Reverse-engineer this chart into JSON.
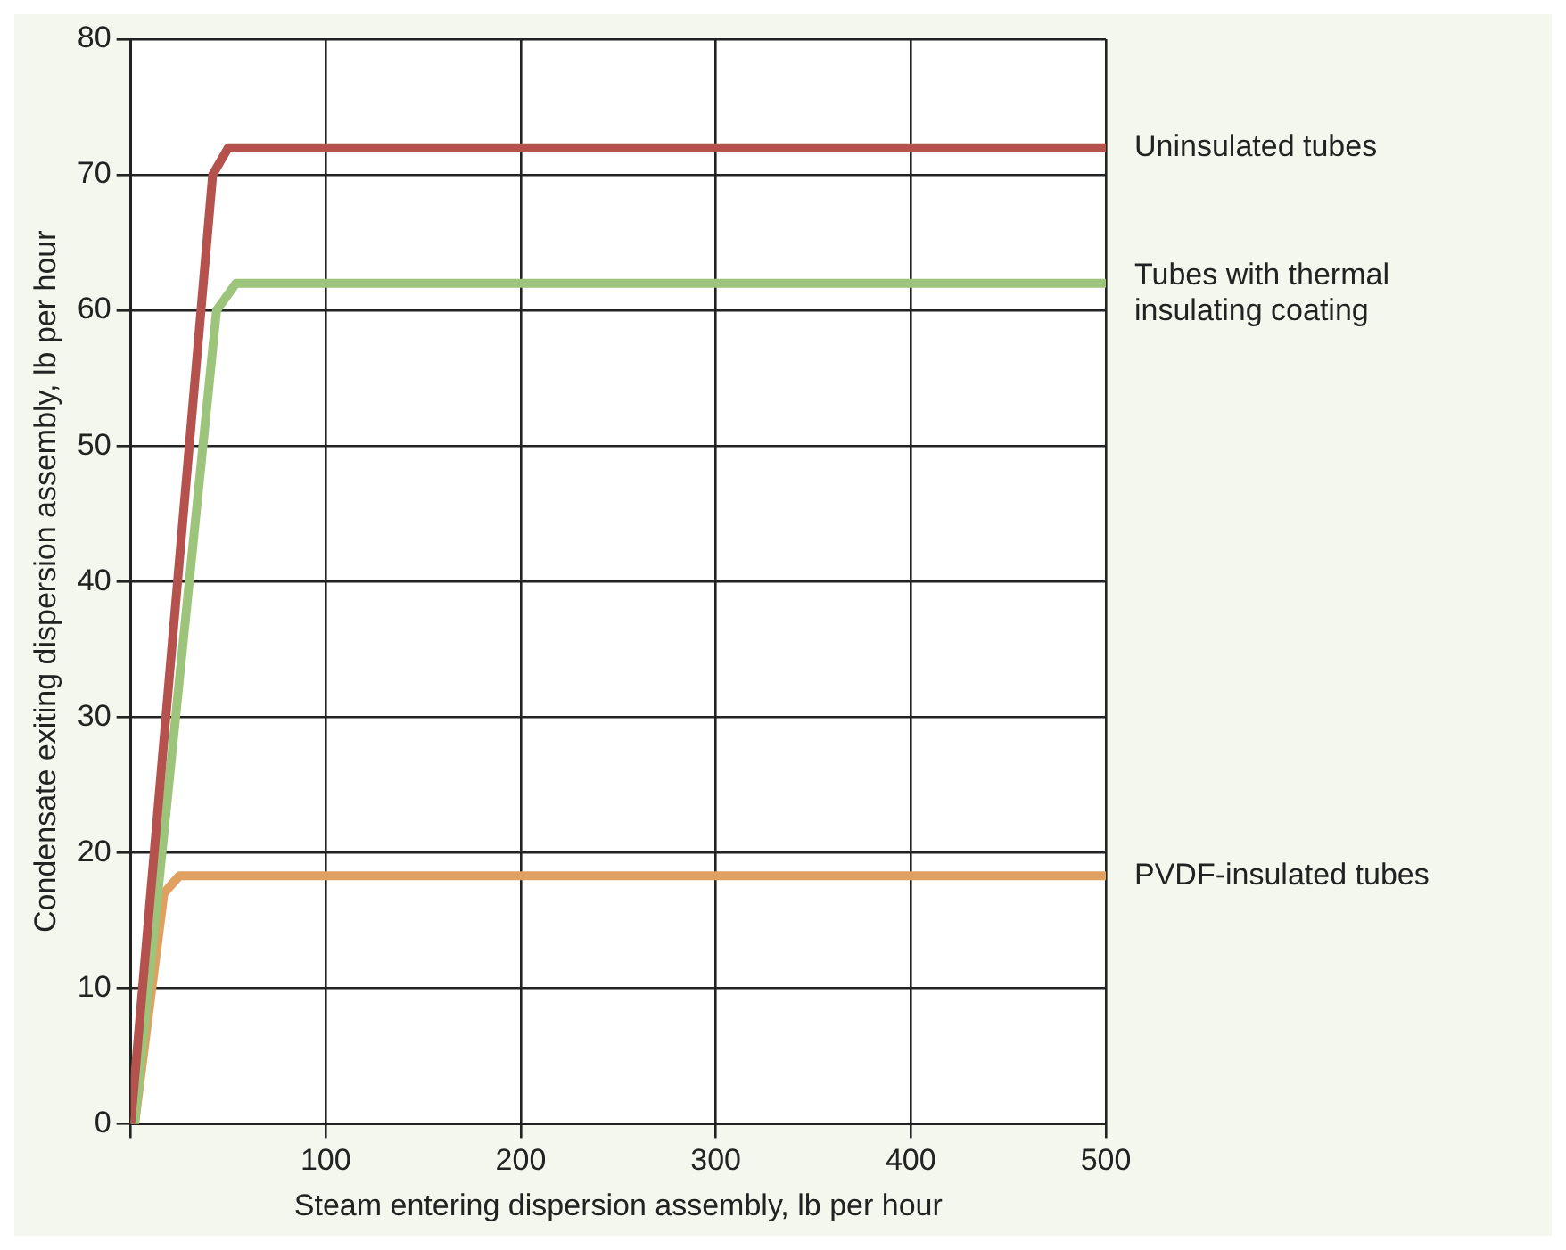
{
  "chart_data": {
    "type": "line",
    "xlabel": "Steam entering dispersion assembly, lb per hour",
    "ylabel": "Condensate exiting dispersion assembly, lb per hour",
    "xlim": [
      0,
      500
    ],
    "xticks": [
      {
        "value": 0,
        "label": null
      },
      100,
      200,
      300,
      400,
      500
    ],
    "ylim": [
      0,
      80
    ],
    "yticks": [
      0,
      10,
      20,
      30,
      40,
      50,
      60,
      70,
      80
    ],
    "grid": true,
    "legend": false,
    "marker": "none",
    "line_style": "solid",
    "series": [
      {
        "name": "Uninsulated tubes",
        "color": "#b5524e",
        "x": [
          0,
          42,
          50,
          500
        ],
        "values": [
          0,
          70,
          72,
          72
        ]
      },
      {
        "name": "Tubes with thermal insulating coating",
        "color": "#9cc47a",
        "x": [
          2,
          44,
          54,
          500
        ],
        "values": [
          0,
          60,
          62,
          62
        ]
      },
      {
        "name": "PVDF-insulated tubes",
        "color": "#e0a060",
        "x": [
          2,
          17,
          25,
          500
        ],
        "values": [
          0,
          17,
          18.3,
          18.3
        ]
      }
    ]
  }
}
